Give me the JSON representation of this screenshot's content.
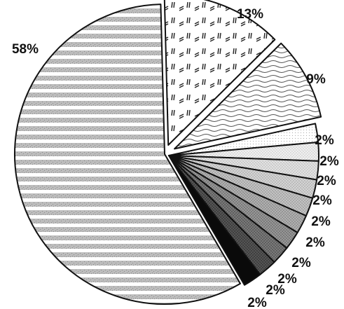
{
  "chart_data": {
    "type": "pie",
    "title": "",
    "start_angle_deg": -1.5,
    "direction": "clockwise",
    "exploded": true,
    "slices": [
      {
        "value": 13,
        "label": "13%",
        "pattern": "dashes-vertical"
      },
      {
        "value": 9,
        "label": "9%",
        "pattern": "waves"
      },
      {
        "value": 2,
        "label": "2%",
        "pattern": "dots-light"
      },
      {
        "value": 2,
        "label": "2%",
        "pattern": "stipple-1"
      },
      {
        "value": 2,
        "label": "2%",
        "pattern": "stipple-2"
      },
      {
        "value": 2,
        "label": "2%",
        "pattern": "stipple-3"
      },
      {
        "value": 2,
        "label": "2%",
        "pattern": "stipple-4"
      },
      {
        "value": 2,
        "label": "2%",
        "pattern": "stipple-5"
      },
      {
        "value": 2,
        "label": "2%",
        "pattern": "stipple-6"
      },
      {
        "value": 2,
        "label": "2%",
        "pattern": "stipple-7"
      },
      {
        "value": 2,
        "label": "2%",
        "pattern": "stipple-8"
      },
      {
        "value": 2,
        "label": "2%",
        "pattern": "solid-black"
      },
      {
        "value": 58,
        "label": "58%",
        "pattern": "horizontal-stripes"
      }
    ],
    "colors": {
      "outline": "#111111",
      "background": "#ffffff",
      "label": "#111111"
    }
  }
}
